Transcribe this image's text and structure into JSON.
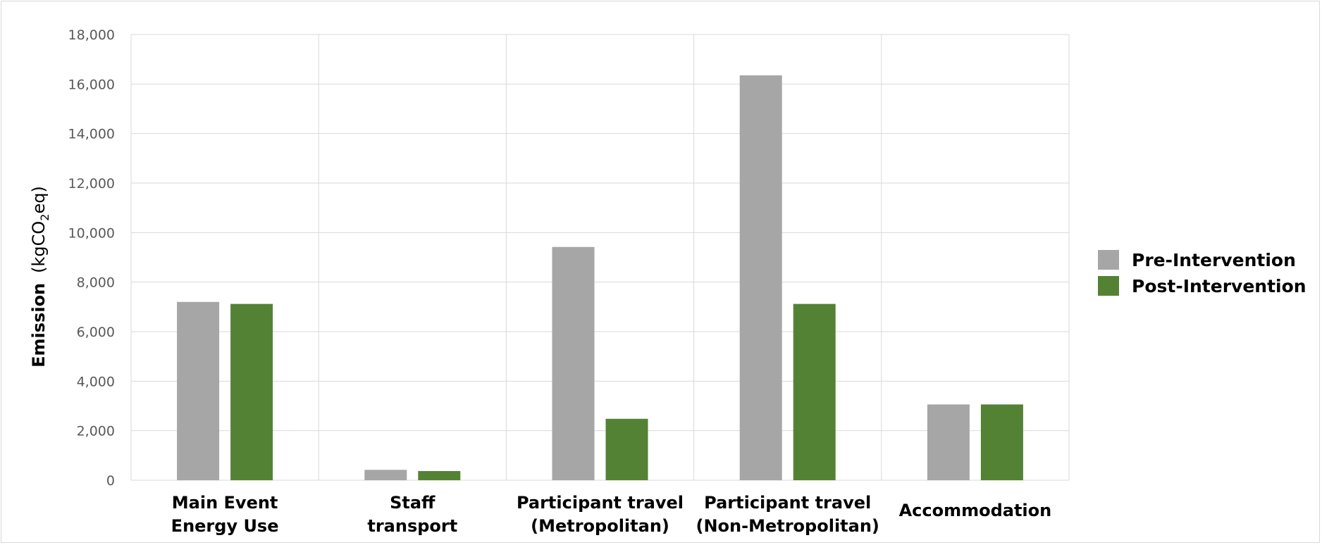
{
  "chart_data": {
    "type": "bar",
    "categories": [
      [
        "Main Event",
        "Energy Use"
      ],
      [
        "Staff",
        "transport"
      ],
      [
        "Participant travel",
        "(Metropolitan)"
      ],
      [
        "Participant travel",
        "(Non-Metropolitan)"
      ],
      [
        "Accommodation"
      ]
    ],
    "series": [
      {
        "name": "Pre-Intervention",
        "color": "#a6a6a6",
        "values": [
          7200,
          420,
          9420,
          16350,
          3060
        ]
      },
      {
        "name": "Post-Intervention",
        "color": "#548235",
        "values": [
          7120,
          370,
          2480,
          7120,
          3060
        ]
      }
    ],
    "ylabel": {
      "main": "Emission",
      "unit_prefix": "(kgCO",
      "unit_sub": "2",
      "unit_suffix": "eq)"
    },
    "ylim": [
      0,
      18000
    ],
    "yticks": [
      "0",
      "2,000",
      "4,000",
      "6,000",
      "8,000",
      "10,000",
      "12,000",
      "14,000",
      "16,000",
      "18,000"
    ],
    "grid": true,
    "legend_position": "right"
  }
}
